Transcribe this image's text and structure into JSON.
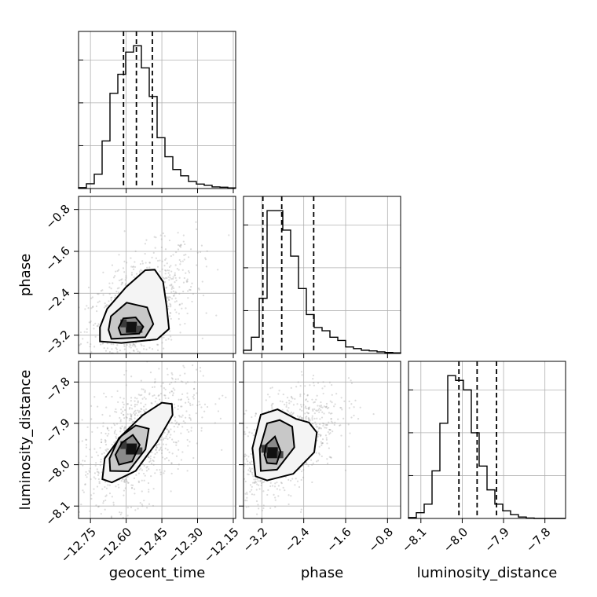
{
  "chart_data": {
    "type": "corner",
    "parameters": [
      "geocent_time",
      "phase",
      "luminosity_distance"
    ],
    "axes": {
      "geocent_time": {
        "range": [
          -12.8,
          -12.14
        ],
        "ticks": [
          -12.75,
          -12.6,
          -12.45,
          -12.3,
          -12.15
        ],
        "tick_labels": [
          "−12.75",
          "−12.60",
          "−12.45",
          "−12.30",
          "−12.15"
        ]
      },
      "phase": {
        "range": [
          -3.55,
          -0.55
        ],
        "ticks": [
          -3.2,
          -2.4,
          -1.6,
          -0.8
        ],
        "tick_labels": [
          "−3.2",
          "−2.4",
          "−1.6",
          "−0.8"
        ]
      },
      "luminosity_distance": {
        "range": [
          -8.13,
          -7.75
        ],
        "ticks": [
          -8.1,
          -8.0,
          -7.9,
          -7.8
        ],
        "tick_labels": [
          "−8.1",
          "−8.0",
          "−7.9",
          "−7.8"
        ]
      }
    },
    "marginals": [
      {
        "param": "geocent_time",
        "bin_edges": [
          -12.8,
          -12.767,
          -12.734,
          -12.701,
          -12.668,
          -12.635,
          -12.602,
          -12.569,
          -12.536,
          -12.503,
          -12.47,
          -12.437,
          -12.404,
          -12.371,
          -12.338,
          -12.305,
          -12.272,
          -12.239,
          -12.206,
          -12.173,
          -12.14
        ],
        "counts": [
          3,
          15,
          45,
          150,
          300,
          360,
          430,
          450,
          380,
          290,
          160,
          100,
          60,
          40,
          22,
          14,
          10,
          5,
          4,
          2
        ],
        "quantiles": [
          -12.611,
          -12.557,
          -12.49
        ]
      },
      {
        "param": "phase",
        "bin_edges": [
          -3.55,
          -3.4,
          -3.25,
          -3.1,
          -2.95,
          -2.8,
          -2.65,
          -2.5,
          -2.35,
          -2.2,
          -2.05,
          -1.9,
          -1.75,
          -1.6,
          -1.45,
          -1.3,
          -1.15,
          -1.0,
          -0.85,
          -0.7,
          -0.55
        ],
        "counts": [
          10,
          50,
          170,
          440,
          440,
          380,
          300,
          200,
          120,
          80,
          70,
          50,
          40,
          20,
          15,
          10,
          8,
          5,
          3,
          2
        ],
        "quantiles": [
          -3.18,
          -2.82,
          -2.21
        ]
      },
      {
        "param": "luminosity_distance",
        "bin_edges": [
          -8.13,
          -8.111,
          -8.092,
          -8.073,
          -8.054,
          -8.035,
          -8.016,
          -7.997,
          -7.978,
          -7.959,
          -7.94,
          -7.921,
          -7.902,
          -7.883,
          -7.864,
          -7.845,
          -7.826,
          -7.807,
          -7.788,
          -7.769,
          -7.75
        ],
        "counts": [
          2,
          12,
          30,
          100,
          200,
          300,
          290,
          270,
          180,
          110,
          60,
          30,
          16,
          8,
          3,
          1,
          0,
          0,
          0,
          0
        ],
        "quantiles": [
          -8.008,
          -7.964,
          -7.917
        ]
      }
    ],
    "joint": [
      {
        "x": "geocent_time",
        "y": "phase",
        "peak": [
          -12.578,
          -3.05
        ],
        "contours": [
          [
            [
              -12.622,
              -3.19
            ],
            [
              -12.545,
              -3.17
            ],
            [
              -12.528,
              -3.04
            ],
            [
              -12.56,
              -2.86
            ],
            [
              -12.612,
              -2.88
            ],
            [
              -12.632,
              -3.06
            ]
          ],
          [
            [
              -12.662,
              -3.27
            ],
            [
              -12.52,
              -3.24
            ],
            [
              -12.486,
              -2.99
            ],
            [
              -12.512,
              -2.67
            ],
            [
              -12.598,
              -2.58
            ],
            [
              -12.664,
              -2.84
            ],
            [
              -12.674,
              -3.1
            ]
          ],
          [
            [
              -12.71,
              -3.32
            ],
            [
              -12.62,
              -3.35
            ],
            [
              -12.47,
              -3.28
            ],
            [
              -12.42,
              -3.08
            ],
            [
              -12.43,
              -2.65
            ],
            [
              -12.445,
              -2.18
            ],
            [
              -12.48,
              -1.95
            ],
            [
              -12.52,
              -1.96
            ],
            [
              -12.6,
              -2.28
            ],
            [
              -12.68,
              -2.7
            ],
            [
              -12.71,
              -3.05
            ]
          ]
        ]
      },
      {
        "x": "geocent_time",
        "y": "luminosity_distance",
        "peak": [
          -12.578,
          -7.962
        ],
        "contours": [
          [
            [
              -12.63,
              -8.0
            ],
            [
              -12.575,
              -7.992
            ],
            [
              -12.543,
              -7.952
            ],
            [
              -12.572,
              -7.928
            ],
            [
              -12.618,
              -7.947
            ],
            [
              -12.645,
              -7.976
            ]
          ],
          [
            [
              -12.667,
              -8.015
            ],
            [
              -12.59,
              -8.016
            ],
            [
              -12.519,
              -7.963
            ],
            [
              -12.505,
              -7.913
            ],
            [
              -12.56,
              -7.905
            ],
            [
              -12.63,
              -7.935
            ],
            [
              -12.67,
              -7.985
            ]
          ],
          [
            [
              -12.7,
              -8.035
            ],
            [
              -12.66,
              -8.043
            ],
            [
              -12.56,
              -8.015
            ],
            [
              -12.47,
              -7.945
            ],
            [
              -12.405,
              -7.88
            ],
            [
              -12.408,
              -7.853
            ],
            [
              -12.45,
              -7.85
            ],
            [
              -12.53,
              -7.88
            ],
            [
              -12.62,
              -7.93
            ],
            [
              -12.69,
              -7.985
            ]
          ]
        ]
      },
      {
        "x": "phase",
        "y": "luminosity_distance",
        "peak": [
          -3.0,
          -7.971
        ],
        "contours": [
          [
            [
              -3.1,
              -7.996
            ],
            [
              -2.92,
              -7.998
            ],
            [
              -2.84,
              -7.968
            ],
            [
              -2.95,
              -7.932
            ],
            [
              -3.12,
              -7.952
            ],
            [
              -3.15,
              -7.976
            ]
          ],
          [
            [
              -3.22,
              -8.015
            ],
            [
              -2.91,
              -8.012
            ],
            [
              -2.58,
              -7.958
            ],
            [
              -2.62,
              -7.908
            ],
            [
              -2.86,
              -7.892
            ],
            [
              -3.1,
              -7.9
            ],
            [
              -3.24,
              -7.962
            ]
          ],
          [
            [
              -3.32,
              -8.028
            ],
            [
              -3.1,
              -8.038
            ],
            [
              -2.6,
              -8.022
            ],
            [
              -2.2,
              -7.97
            ],
            [
              -2.15,
              -7.922
            ],
            [
              -2.3,
              -7.898
            ],
            [
              -2.55,
              -7.889
            ],
            [
              -2.9,
              -7.866
            ],
            [
              -3.22,
              -7.879
            ],
            [
              -3.38,
              -7.96
            ]
          ]
        ]
      }
    ],
    "grid": true
  }
}
